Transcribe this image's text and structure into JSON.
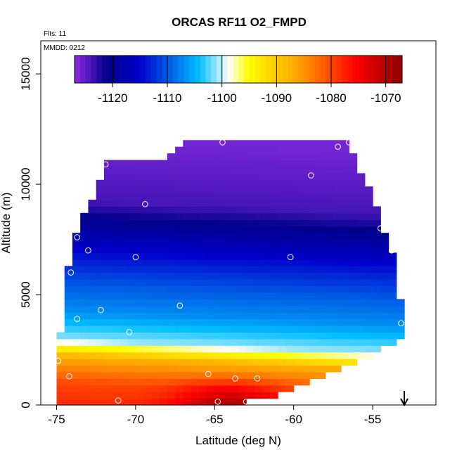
{
  "chart_data": {
    "type": "heatmap",
    "title": "ORCAS RF11 O2_FMPD",
    "meta_flights": "Flts: 11",
    "meta_date": "MMDD: 0212",
    "xlabel": "Latitude (deg N)",
    "ylabel": "Altitude (m)",
    "xlim": [
      -76.0,
      -51.0
    ],
    "ylim": [
      0,
      16500
    ],
    "xticks": [
      -75,
      -70,
      -65,
      -60,
      -55
    ],
    "xtick_labels": [
      "-75",
      "-70",
      "-65",
      "-60",
      "-55"
    ],
    "yticks": [
      0,
      5000,
      10000,
      15000
    ],
    "ytick_labels": [
      "0",
      "5000",
      "10000",
      "15000"
    ],
    "colorbar": {
      "range": [
        -1127,
        -1067
      ],
      "ticks": [
        -1120,
        -1110,
        -1100,
        -1090,
        -1080,
        -1070
      ],
      "tick_labels": [
        "-1120",
        "-1110",
        "-1100",
        "-1090",
        "-1080",
        "-1070"
      ],
      "colors": [
        "#8a2be2",
        "#00008b",
        "#0000cd",
        "#00bfff",
        "#ffffff",
        "#ffff00",
        "#ffa500",
        "#ff0000",
        "#8b0000"
      ],
      "color_positions": [
        0,
        0.1,
        0.2,
        0.38,
        0.47,
        0.53,
        0.68,
        0.86,
        1.0
      ]
    },
    "field": {
      "x_range": [
        -75.0,
        -53.0
      ],
      "y_range": [
        0,
        12000
      ],
      "x_step": 0.5,
      "y_step": 300,
      "top_edge": [
        [
          -75.0,
          1000
        ],
        [
          -74.5,
          5500
        ],
        [
          -73.8,
          7600
        ],
        [
          -73.3,
          8500
        ],
        [
          -72.5,
          9600
        ],
        [
          -71.8,
          11000
        ],
        [
          -68.0,
          11100
        ],
        [
          -67.0,
          12000
        ],
        [
          -56.5,
          12000
        ],
        [
          -56.0,
          11000
        ],
        [
          -55.0,
          9400
        ],
        [
          -54.0,
          7300
        ],
        [
          -53.6,
          6500
        ],
        [
          -53.0,
          3600
        ],
        [
          -53.0,
          3000
        ]
      ],
      "bottom_edge": [
        [
          -75.0,
          0
        ],
        [
          -66.0,
          0
        ],
        [
          -64.0,
          100
        ],
        [
          -62.0,
          200
        ],
        [
          -60.0,
          700
        ],
        [
          -58.0,
          1300
        ],
        [
          -56.0,
          1900
        ],
        [
          -54.5,
          2500
        ],
        [
          -53.0,
          3000
        ]
      ],
      "layers": [
        {
          "alt": 0,
          "value": -1078
        },
        {
          "alt": 1000,
          "value": -1080
        },
        {
          "alt": 2200,
          "value": -1087
        },
        {
          "alt": 3000,
          "value": -1101
        },
        {
          "alt": 4300,
          "value": -1107
        },
        {
          "alt": 5500,
          "value": -1110
        },
        {
          "alt": 6800,
          "value": -1114
        },
        {
          "alt": 8000,
          "value": -1119
        },
        {
          "alt": 9300,
          "value": -1124
        },
        {
          "alt": 12000,
          "value": -1126
        }
      ]
    },
    "points": [
      {
        "lat": -71.9,
        "alt": 10900
      },
      {
        "lat": -69.4,
        "alt": 9100
      },
      {
        "lat": -64.5,
        "alt": 11900
      },
      {
        "lat": -58.9,
        "alt": 10400
      },
      {
        "lat": -57.2,
        "alt": 11700
      },
      {
        "lat": -56.5,
        "alt": 11900
      },
      {
        "lat": -54.5,
        "alt": 8000
      },
      {
        "lat": -53.8,
        "alt": 7000
      },
      {
        "lat": -73.7,
        "alt": 7600
      },
      {
        "lat": -73.0,
        "alt": 7000
      },
      {
        "lat": -70.0,
        "alt": 6700
      },
      {
        "lat": -60.2,
        "alt": 6700
      },
      {
        "lat": -74.1,
        "alt": 6000
      },
      {
        "lat": -67.2,
        "alt": 4500
      },
      {
        "lat": -72.2,
        "alt": 4300
      },
      {
        "lat": -73.7,
        "alt": 3900
      },
      {
        "lat": -70.4,
        "alt": 3300
      },
      {
        "lat": -53.2,
        "alt": 3700
      },
      {
        "lat": -74.9,
        "alt": 2000
      },
      {
        "lat": -74.2,
        "alt": 1300
      },
      {
        "lat": -65.4,
        "alt": 1400
      },
      {
        "lat": -63.7,
        "alt": 1200
      },
      {
        "lat": -62.3,
        "alt": 1200
      },
      {
        "lat": -71.1,
        "alt": 200
      },
      {
        "lat": -64.8,
        "alt": 150
      },
      {
        "lat": -63.0,
        "alt": 150
      },
      {
        "lat": -61.6,
        "alt": 150
      },
      {
        "lat": -61.2,
        "alt": 150
      }
    ],
    "arrow_lat": -53.0
  }
}
